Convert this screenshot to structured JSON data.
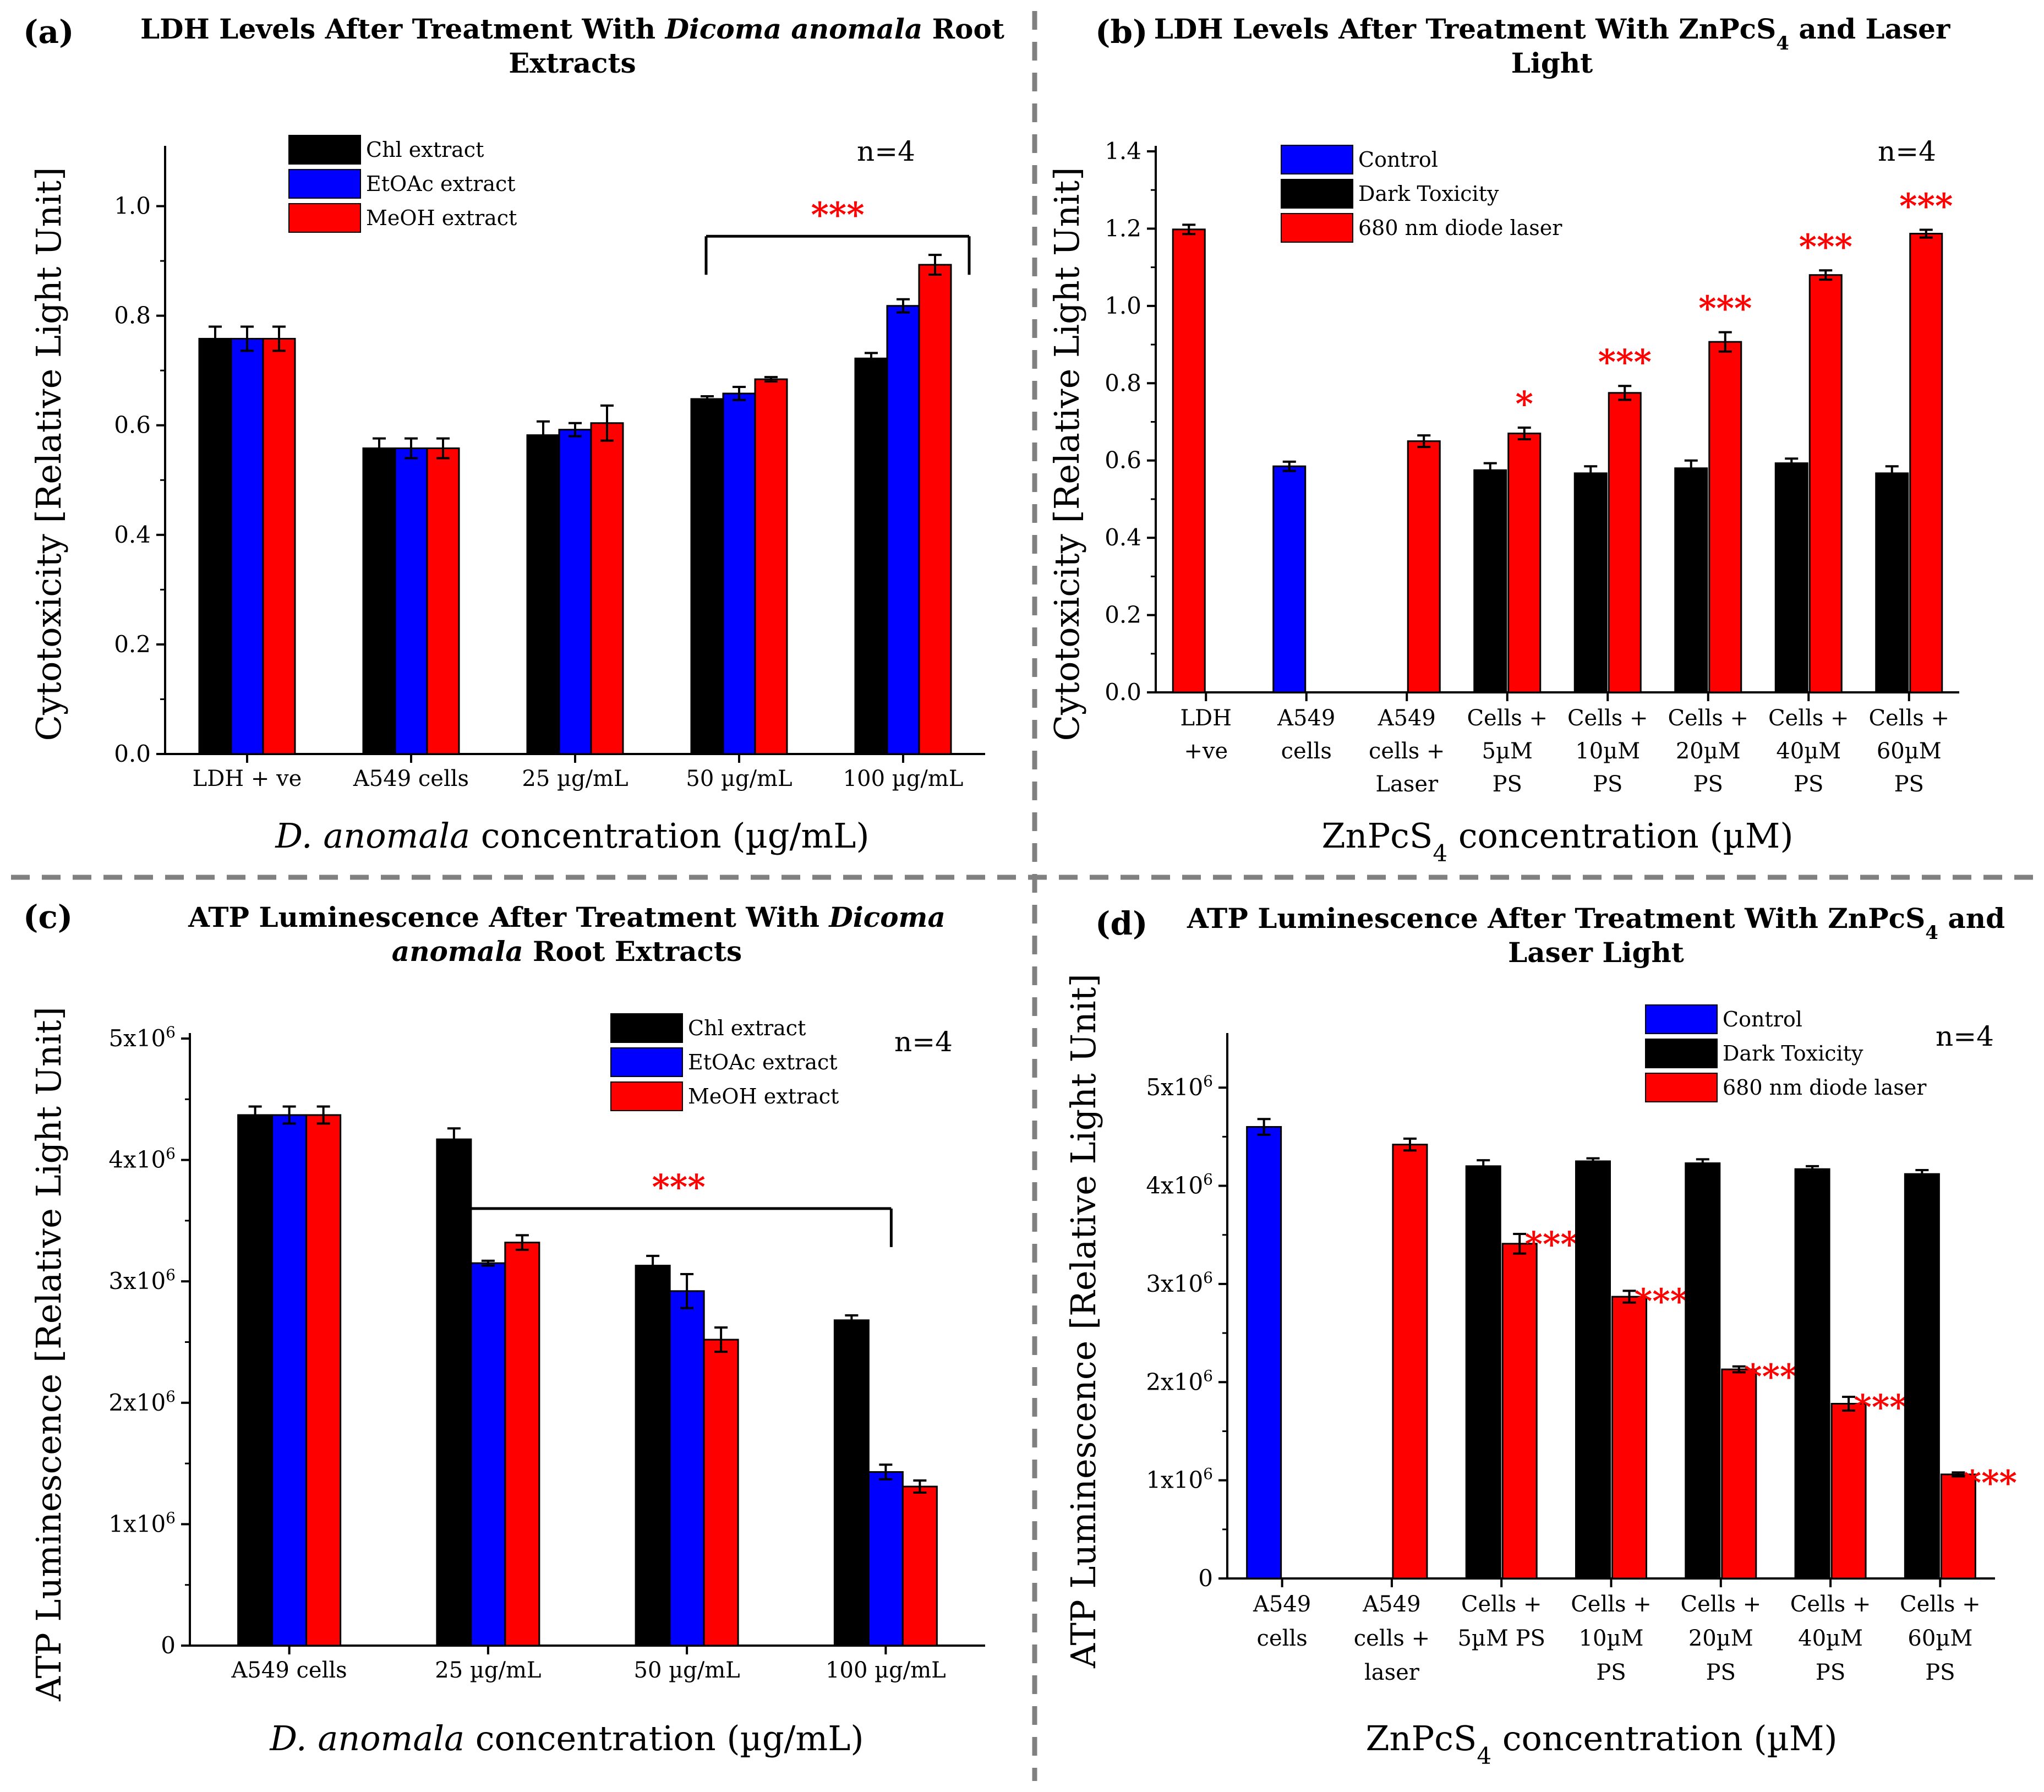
{
  "colors": {
    "black": "#000000",
    "blue": "#0000ff",
    "red": "#ff0000",
    "divider": "#808080"
  },
  "chart_data": [
    {
      "id": "a",
      "type": "bar",
      "panel_label": "(a)",
      "title_parts": [
        "LDH Levels After Treatment With ",
        "Dicoma anomala",
        " Root"
      ],
      "title_line2": "Extracts",
      "xlabel_parts": [
        "D. anomala",
        " concentration (µg/mL)"
      ],
      "ylabel": "Cytotoxicity [Relative Light Unit]",
      "n_label": "n=4",
      "ylim": [
        0,
        1.1
      ],
      "yticks": [
        0.0,
        0.2,
        0.4,
        0.6,
        0.8,
        1.0
      ],
      "ytick_labels": [
        "0.0",
        "0.2",
        "0.4",
        "0.6",
        "0.8",
        "1.0"
      ],
      "categories": [
        [
          "LDH + ve"
        ],
        [
          "A549 cells"
        ],
        [
          "25 µg/mL"
        ],
        [
          "50 µg/mL"
        ],
        [
          "100 µg/mL"
        ]
      ],
      "legend_position": "top-left",
      "series": [
        {
          "name": "Chl extract",
          "color": "black",
          "values": [
            0.758,
            0.558,
            0.582,
            0.648,
            0.722
          ],
          "errors": [
            0.022,
            0.018,
            0.025,
            0.005,
            0.01
          ]
        },
        {
          "name": "EtOAc extract",
          "color": "blue",
          "values": [
            0.758,
            0.558,
            0.592,
            0.658,
            0.818
          ],
          "errors": [
            0.022,
            0.018,
            0.012,
            0.012,
            0.012
          ]
        },
        {
          "name": "MeOH extract",
          "color": "red",
          "values": [
            0.758,
            0.558,
            0.604,
            0.684,
            0.893
          ],
          "errors": [
            0.022,
            0.018,
            0.032,
            0.004,
            0.018
          ]
        }
      ],
      "bracket": {
        "label": "***",
        "from_category": 3,
        "to_category": 4,
        "y": 0.945
      }
    },
    {
      "id": "b",
      "type": "bar",
      "panel_label": "(b)",
      "title_parts": [
        "LDH Levels After Treatment With ZnPcS",
        "4",
        " and Laser"
      ],
      "title_line2": "Light",
      "xlabel_parts": [
        "ZnPcS",
        "4",
        " concentration (µM)"
      ],
      "ylabel": "Cytotoxicity [Relative Light Unit]",
      "n_label": "n=4",
      "ylim": [
        0,
        1.4
      ],
      "yticks": [
        0.0,
        0.2,
        0.4,
        0.6,
        0.8,
        1.0,
        1.2,
        1.4
      ],
      "ytick_labels": [
        "0.0",
        "0.2",
        "0.4",
        "0.6",
        "0.8",
        "1.0",
        "1.2",
        "1.4"
      ],
      "categories": [
        [
          "LDH",
          "+ve"
        ],
        [
          "A549",
          "cells"
        ],
        [
          "A549",
          "cells +",
          "Laser"
        ],
        [
          "Cells +",
          "5µM",
          "PS"
        ],
        [
          "Cells +",
          "10µM",
          "PS"
        ],
        [
          "Cells +",
          "20µM",
          "PS"
        ],
        [
          "Cells +",
          "40µM",
          "PS"
        ],
        [
          "Cells +",
          "60µM",
          "PS"
        ]
      ],
      "legend_position": "top-left",
      "series": [
        {
          "name": "Control",
          "color": "blue",
          "values": [
            null,
            0.585,
            null,
            null,
            null,
            null,
            null,
            null
          ],
          "errors": [
            null,
            0.012,
            null,
            null,
            null,
            null,
            null,
            null
          ]
        },
        {
          "name": "Dark Toxicity",
          "color": "black",
          "values": [
            null,
            null,
            null,
            0.575,
            0.567,
            0.58,
            0.593,
            0.567
          ],
          "errors": [
            null,
            null,
            null,
            0.018,
            0.018,
            0.02,
            0.012,
            0.018
          ]
        },
        {
          "name": "680 nm diode laser",
          "color": "red",
          "values": [
            1.198,
            null,
            0.65,
            0.67,
            0.775,
            0.907,
            1.08,
            1.187
          ],
          "errors": [
            0.012,
            null,
            0.015,
            0.015,
            0.018,
            0.025,
            0.012,
            0.01
          ]
        }
      ],
      "stars": [
        "",
        "",
        "",
        "*",
        "***",
        "***",
        "***",
        "***"
      ]
    },
    {
      "id": "c",
      "type": "bar",
      "panel_label": "(c)",
      "title_parts": [
        "ATP Luminescence After Treatment With ",
        "Dicoma",
        ""
      ],
      "title_line2_parts": [
        "anomala",
        " Root Extracts"
      ],
      "xlabel_parts": [
        "D. anomala",
        " concentration (µg/mL)"
      ],
      "ylabel": "ATP Luminescence [Relative Light Unit]",
      "n_label": "n=4",
      "ylim": [
        0,
        5000000
      ],
      "yticks": [
        0,
        1000000,
        2000000,
        3000000,
        4000000,
        5000000
      ],
      "ytick_labels": [
        "0",
        "1x10",
        "2x10",
        "3x10",
        "4x10",
        "5x10"
      ],
      "ytick_exp": "6",
      "categories": [
        [
          "A549 cells"
        ],
        [
          "25 µg/mL"
        ],
        [
          "50 µg/mL"
        ],
        [
          "100 µg/mL"
        ]
      ],
      "legend_position": "top-right",
      "series": [
        {
          "name": "Chl extract",
          "color": "black",
          "values": [
            4370000,
            4170000,
            3130000,
            2680000
          ],
          "errors": [
            70000,
            90000,
            80000,
            40000
          ]
        },
        {
          "name": "EtOAc extract",
          "color": "blue",
          "values": [
            4370000,
            3150000,
            2920000,
            1430000
          ],
          "errors": [
            70000,
            20000,
            140000,
            60000
          ]
        },
        {
          "name": "MeOH extract",
          "color": "red",
          "values": [
            4370000,
            3320000,
            2520000,
            1310000
          ],
          "errors": [
            70000,
            60000,
            100000,
            50000
          ]
        }
      ],
      "bracket": {
        "label": "***",
        "from_category": 1,
        "to_category": 3,
        "y": 3600000
      }
    },
    {
      "id": "d",
      "type": "bar",
      "panel_label": "(d)",
      "title_parts": [
        "ATP Luminescence After Treatment With ZnPcS",
        "4",
        " and"
      ],
      "title_line2": "Laser Light",
      "xlabel_parts": [
        "ZnPcS",
        "4",
        " concentration (µM)"
      ],
      "ylabel": "ATP Luminescence [Relative Light Unit]",
      "n_label": "n=4",
      "ylim": [
        0,
        5500000
      ],
      "yticks": [
        0,
        1000000,
        2000000,
        3000000,
        4000000,
        5000000
      ],
      "ytick_labels": [
        "0",
        "1x10",
        "2x10",
        "3x10",
        "4x10",
        "5x10"
      ],
      "ytick_exp": "6",
      "categories": [
        [
          "A549",
          "cells"
        ],
        [
          "A549",
          "cells +",
          "laser"
        ],
        [
          "Cells +",
          "5µM PS"
        ],
        [
          "Cells +",
          "10µM",
          "PS"
        ],
        [
          "Cells +",
          "20µM",
          "PS"
        ],
        [
          "Cells +",
          "40µM",
          "PS"
        ],
        [
          "Cells +",
          "60µM",
          "PS"
        ]
      ],
      "legend_position": "top-right",
      "series": [
        {
          "name": "Control",
          "color": "blue",
          "values": [
            4600000,
            null,
            null,
            null,
            null,
            null,
            null
          ],
          "errors": [
            80000,
            null,
            null,
            null,
            null,
            null,
            null
          ]
        },
        {
          "name": "Dark Toxicity",
          "color": "black",
          "values": [
            null,
            null,
            4200000,
            4250000,
            4230000,
            4170000,
            4120000
          ],
          "errors": [
            null,
            null,
            60000,
            30000,
            40000,
            30000,
            40000
          ]
        },
        {
          "name": "680 nm diode laser",
          "color": "red",
          "values": [
            null,
            4420000,
            3410000,
            2870000,
            2130000,
            1780000,
            1060000
          ],
          "errors": [
            null,
            60000,
            100000,
            60000,
            30000,
            70000,
            20000
          ]
        }
      ],
      "stars": [
        "",
        "",
        "***",
        "***",
        "***",
        "***",
        "***"
      ]
    }
  ]
}
